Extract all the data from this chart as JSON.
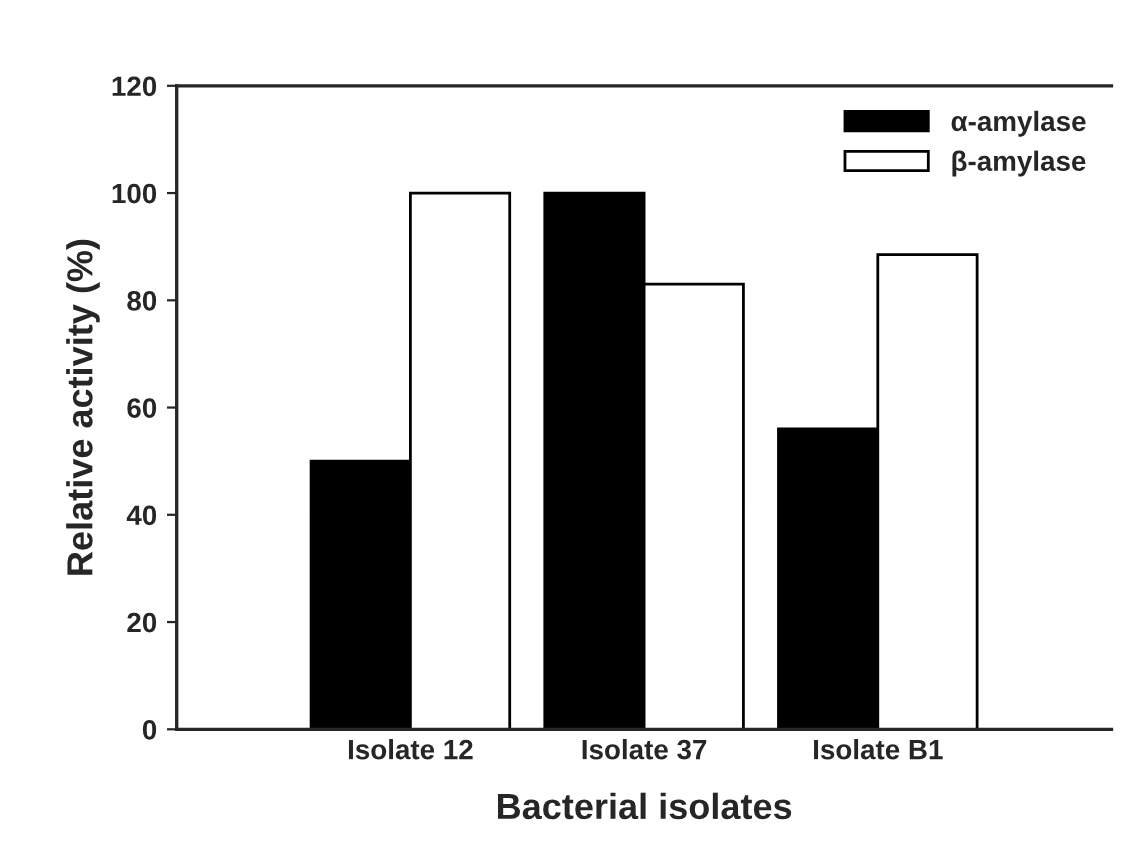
{
  "chart_data": {
    "type": "bar",
    "xlabel": "Bacterial isolates",
    "ylabel": "Relative activity (%)",
    "categories": [
      "Isolate 12",
      "Isolate 37",
      "Isolate B1"
    ],
    "series": [
      {
        "name": "α-amylase",
        "color": "#000000",
        "values": [
          50,
          100,
          56
        ]
      },
      {
        "name": "β-amylase",
        "color": "#ffffff",
        "values": [
          100,
          83,
          88.5
        ]
      }
    ],
    "ylim": [
      0,
      120
    ],
    "yticks": [
      0,
      20,
      40,
      60,
      80,
      100,
      120
    ],
    "grid": false,
    "legend": "top right"
  }
}
